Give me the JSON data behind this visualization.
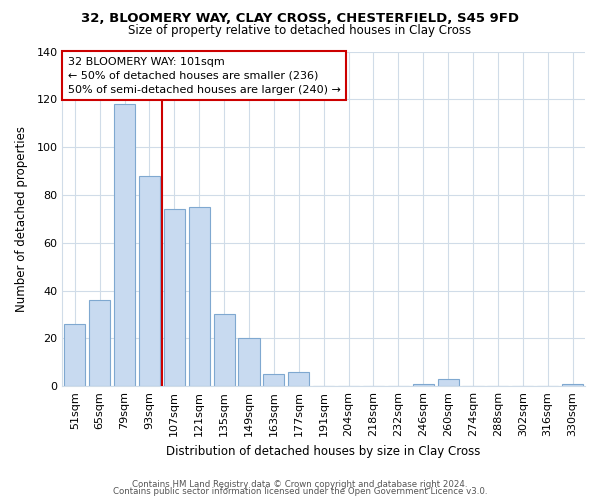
{
  "title": "32, BLOOMERY WAY, CLAY CROSS, CHESTERFIELD, S45 9FD",
  "subtitle": "Size of property relative to detached houses in Clay Cross",
  "xlabel": "Distribution of detached houses by size in Clay Cross",
  "ylabel": "Number of detached properties",
  "bar_labels": [
    "51sqm",
    "65sqm",
    "79sqm",
    "93sqm",
    "107sqm",
    "121sqm",
    "135sqm",
    "149sqm",
    "163sqm",
    "177sqm",
    "191sqm",
    "204sqm",
    "218sqm",
    "232sqm",
    "246sqm",
    "260sqm",
    "274sqm",
    "288sqm",
    "302sqm",
    "316sqm",
    "330sqm"
  ],
  "bar_values": [
    26,
    36,
    118,
    88,
    74,
    75,
    30,
    20,
    5,
    6,
    0,
    0,
    0,
    0,
    1,
    3,
    0,
    0,
    0,
    0,
    1
  ],
  "bar_color": "#c8daf0",
  "bar_edge_color": "#7fa8d0",
  "vline_x": 3.5,
  "vline_color": "#cc0000",
  "annotation_line1": "32 BLOOMERY WAY: 101sqm",
  "annotation_line2": "← 50% of detached houses are smaller (236)",
  "annotation_line3": "50% of semi-detached houses are larger (240) →",
  "ylim": [
    0,
    140
  ],
  "yticks": [
    0,
    20,
    40,
    60,
    80,
    100,
    120,
    140
  ],
  "footer_line1": "Contains HM Land Registry data © Crown copyright and database right 2024.",
  "footer_line2": "Contains public sector information licensed under the Open Government Licence v3.0.",
  "background_color": "#ffffff",
  "grid_color": "#d0dce8"
}
